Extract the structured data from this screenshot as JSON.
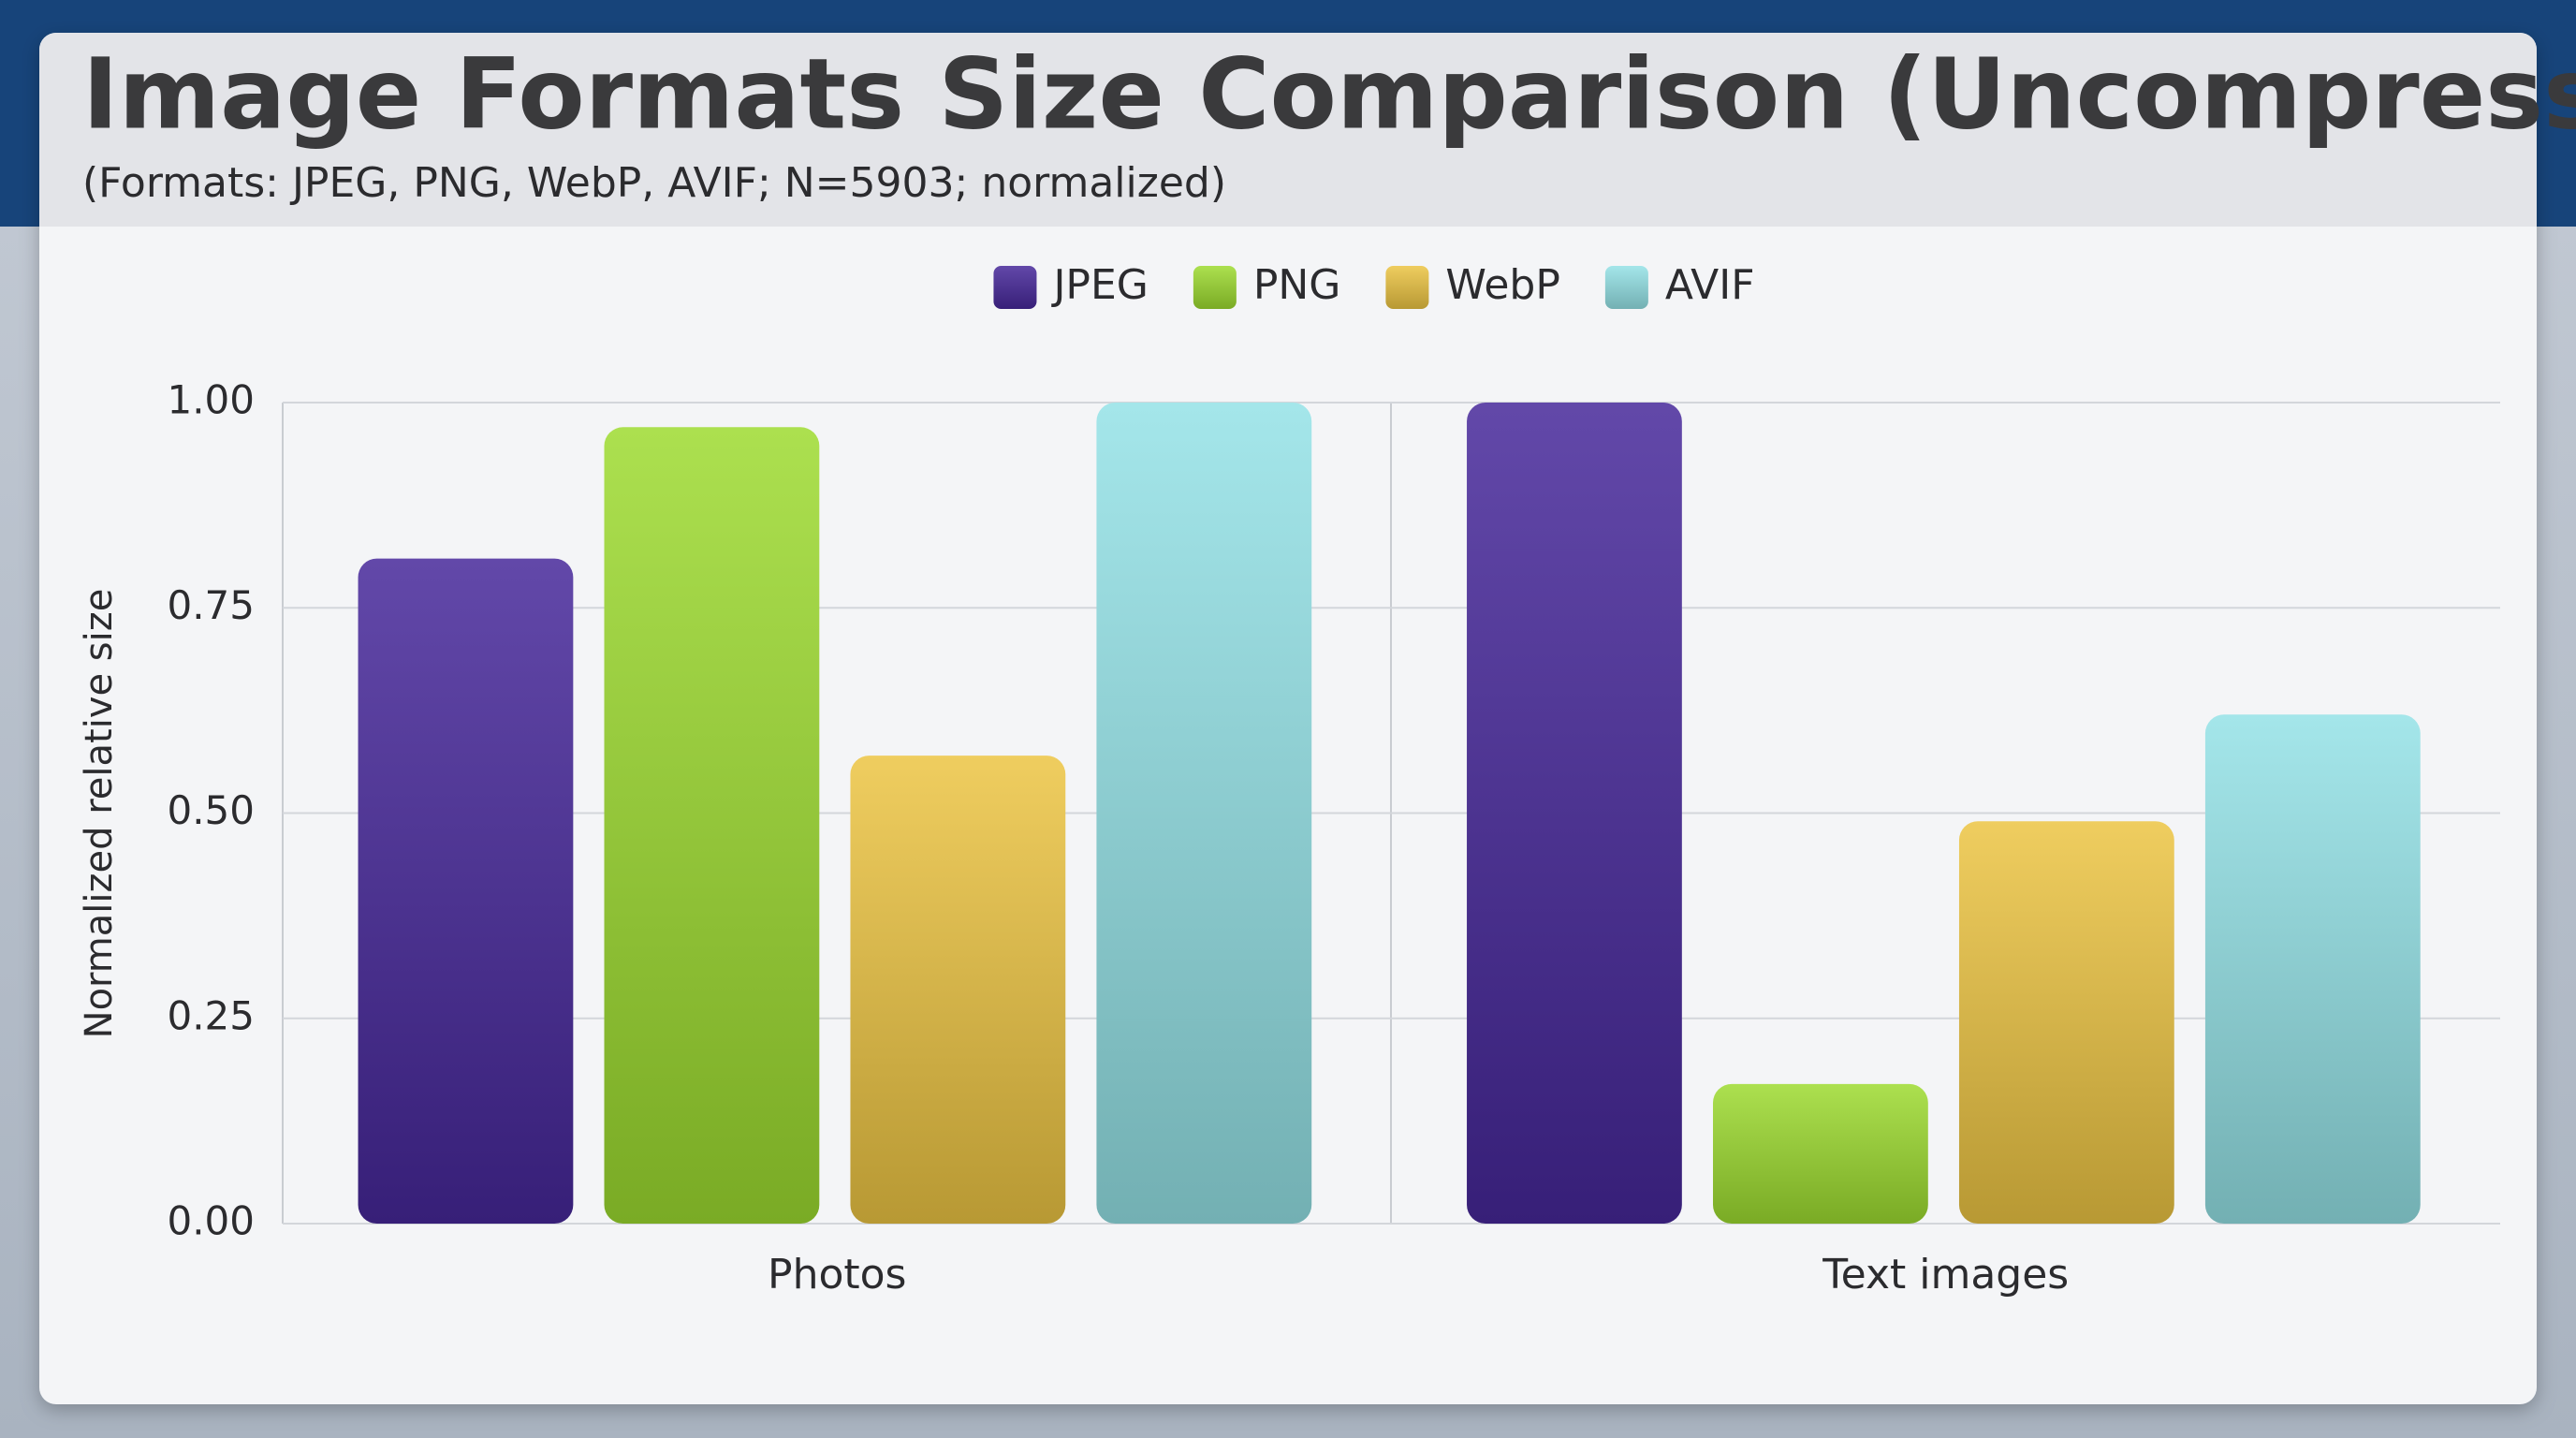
{
  "chart_data": {
    "type": "bar",
    "title": "Image Formats Size Comparison (Uncompressed)",
    "subtitle": "(Formats: JPEG, PNG, WebP, AVIF; N=5903; normalized)",
    "y_label": "Normalized relative size",
    "categories": [
      "Photos",
      "Text images"
    ],
    "series": [
      {
        "name": "JPEG",
        "color": "#46289a",
        "values": [
          0.81,
          1.0
        ]
      },
      {
        "name": "PNG",
        "color": "#9ddb30",
        "values": [
          0.97,
          0.17
        ]
      },
      {
        "name": "WebP",
        "color": "#ecc443",
        "values": [
          0.57,
          0.49
        ]
      },
      {
        "name": "AVIF",
        "color": "#94e2e6",
        "values": [
          1.0,
          0.62
        ]
      }
    ],
    "ylim": [
      0,
      1
    ],
    "yticks": [
      {
        "value": 0,
        "label": "0.00"
      },
      0.25,
      {
        "value": 0.5,
        "label": "0.50"
      },
      0.75,
      {
        "value": 1,
        "label": "1.00"
      }
    ],
    "grid": true,
    "legend": "top"
  }
}
